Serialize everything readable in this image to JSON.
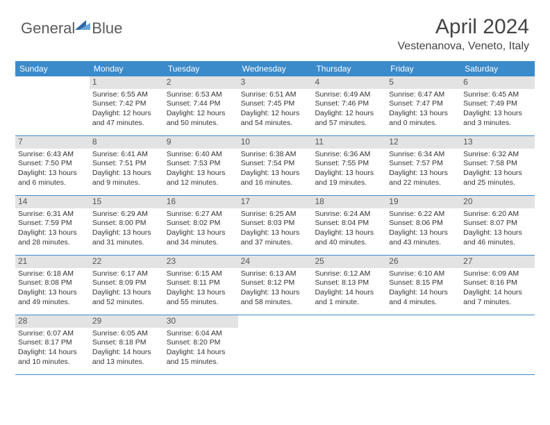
{
  "brand": {
    "word1": "General",
    "word2": "Blue"
  },
  "title": "April 2024",
  "location": "Vestenanova, Veneto, Italy",
  "colors": {
    "header_bg": "#3b8aca",
    "header_text": "#ffffff",
    "daynum_bg": "#e3e3e3",
    "rule": "#3b8aca",
    "body_text": "#333333"
  },
  "weekdays": [
    "Sunday",
    "Monday",
    "Tuesday",
    "Wednesday",
    "Thursday",
    "Friday",
    "Saturday"
  ],
  "weeks": [
    [
      {
        "n": "",
        "empty": true
      },
      {
        "n": "1",
        "sr": "6:55 AM",
        "ss": "7:42 PM",
        "dl": "12 hours and 47 minutes."
      },
      {
        "n": "2",
        "sr": "6:53 AM",
        "ss": "7:44 PM",
        "dl": "12 hours and 50 minutes."
      },
      {
        "n": "3",
        "sr": "6:51 AM",
        "ss": "7:45 PM",
        "dl": "12 hours and 54 minutes."
      },
      {
        "n": "4",
        "sr": "6:49 AM",
        "ss": "7:46 PM",
        "dl": "12 hours and 57 minutes."
      },
      {
        "n": "5",
        "sr": "6:47 AM",
        "ss": "7:47 PM",
        "dl": "13 hours and 0 minutes."
      },
      {
        "n": "6",
        "sr": "6:45 AM",
        "ss": "7:49 PM",
        "dl": "13 hours and 3 minutes."
      }
    ],
    [
      {
        "n": "7",
        "sr": "6:43 AM",
        "ss": "7:50 PM",
        "dl": "13 hours and 6 minutes."
      },
      {
        "n": "8",
        "sr": "6:41 AM",
        "ss": "7:51 PM",
        "dl": "13 hours and 9 minutes."
      },
      {
        "n": "9",
        "sr": "6:40 AM",
        "ss": "7:53 PM",
        "dl": "13 hours and 12 minutes."
      },
      {
        "n": "10",
        "sr": "6:38 AM",
        "ss": "7:54 PM",
        "dl": "13 hours and 16 minutes."
      },
      {
        "n": "11",
        "sr": "6:36 AM",
        "ss": "7:55 PM",
        "dl": "13 hours and 19 minutes."
      },
      {
        "n": "12",
        "sr": "6:34 AM",
        "ss": "7:57 PM",
        "dl": "13 hours and 22 minutes."
      },
      {
        "n": "13",
        "sr": "6:32 AM",
        "ss": "7:58 PM",
        "dl": "13 hours and 25 minutes."
      }
    ],
    [
      {
        "n": "14",
        "sr": "6:31 AM",
        "ss": "7:59 PM",
        "dl": "13 hours and 28 minutes."
      },
      {
        "n": "15",
        "sr": "6:29 AM",
        "ss": "8:00 PM",
        "dl": "13 hours and 31 minutes."
      },
      {
        "n": "16",
        "sr": "6:27 AM",
        "ss": "8:02 PM",
        "dl": "13 hours and 34 minutes."
      },
      {
        "n": "17",
        "sr": "6:25 AM",
        "ss": "8:03 PM",
        "dl": "13 hours and 37 minutes."
      },
      {
        "n": "18",
        "sr": "6:24 AM",
        "ss": "8:04 PM",
        "dl": "13 hours and 40 minutes."
      },
      {
        "n": "19",
        "sr": "6:22 AM",
        "ss": "8:06 PM",
        "dl": "13 hours and 43 minutes."
      },
      {
        "n": "20",
        "sr": "6:20 AM",
        "ss": "8:07 PM",
        "dl": "13 hours and 46 minutes."
      }
    ],
    [
      {
        "n": "21",
        "sr": "6:18 AM",
        "ss": "8:08 PM",
        "dl": "13 hours and 49 minutes."
      },
      {
        "n": "22",
        "sr": "6:17 AM",
        "ss": "8:09 PM",
        "dl": "13 hours and 52 minutes."
      },
      {
        "n": "23",
        "sr": "6:15 AM",
        "ss": "8:11 PM",
        "dl": "13 hours and 55 minutes."
      },
      {
        "n": "24",
        "sr": "6:13 AM",
        "ss": "8:12 PM",
        "dl": "13 hours and 58 minutes."
      },
      {
        "n": "25",
        "sr": "6:12 AM",
        "ss": "8:13 PM",
        "dl": "14 hours and 1 minute."
      },
      {
        "n": "26",
        "sr": "6:10 AM",
        "ss": "8:15 PM",
        "dl": "14 hours and 4 minutes."
      },
      {
        "n": "27",
        "sr": "6:09 AM",
        "ss": "8:16 PM",
        "dl": "14 hours and 7 minutes."
      }
    ],
    [
      {
        "n": "28",
        "sr": "6:07 AM",
        "ss": "8:17 PM",
        "dl": "14 hours and 10 minutes."
      },
      {
        "n": "29",
        "sr": "6:05 AM",
        "ss": "8:18 PM",
        "dl": "14 hours and 13 minutes."
      },
      {
        "n": "30",
        "sr": "6:04 AM",
        "ss": "8:20 PM",
        "dl": "14 hours and 15 minutes."
      },
      {
        "n": "",
        "empty": true
      },
      {
        "n": "",
        "empty": true
      },
      {
        "n": "",
        "empty": true
      },
      {
        "n": "",
        "empty": true
      }
    ]
  ],
  "labels": {
    "sunrise": "Sunrise:",
    "sunset": "Sunset:",
    "daylight": "Daylight:"
  }
}
